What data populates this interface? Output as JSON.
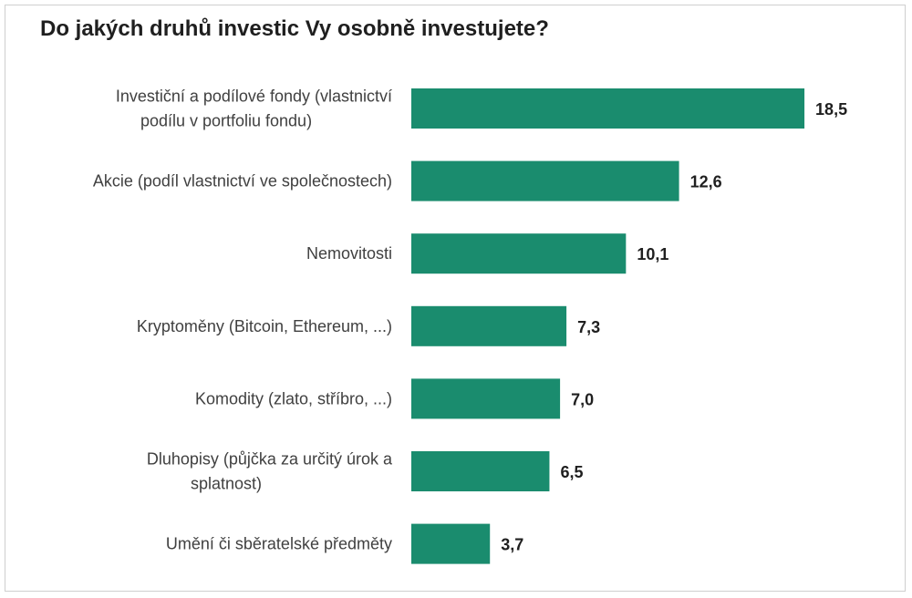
{
  "chart_data": {
    "type": "bar",
    "orientation": "horizontal",
    "title": "Do jakých druhů investic Vy osobně investujete?",
    "categories": [
      [
        "Investiční a podílové fondy (vlastnictví",
        "podílu v portfoliu fondu)"
      ],
      [
        "Akcie (podíl vlastnictví ve společnostech)"
      ],
      [
        "Nemovitosti"
      ],
      [
        "Kryptoměny (Bitcoin, Ethereum, ...)"
      ],
      [
        "Komodity (zlato, stříbro, ...)"
      ],
      [
        "Dluhopisy (půjčka za určitý úrok a",
        "splatnost)"
      ],
      [
        "Umění či sběratelské předměty"
      ]
    ],
    "values": [
      18.5,
      12.6,
      10.1,
      7.3,
      7.0,
      6.5,
      3.7
    ],
    "value_labels": [
      "18,5",
      "12,6",
      "10,1",
      "7,3",
      "7,0",
      "6,5",
      "3,7"
    ],
    "xlim": [
      0,
      20
    ],
    "grid": false,
    "bar_color": "#1a8c6e"
  }
}
